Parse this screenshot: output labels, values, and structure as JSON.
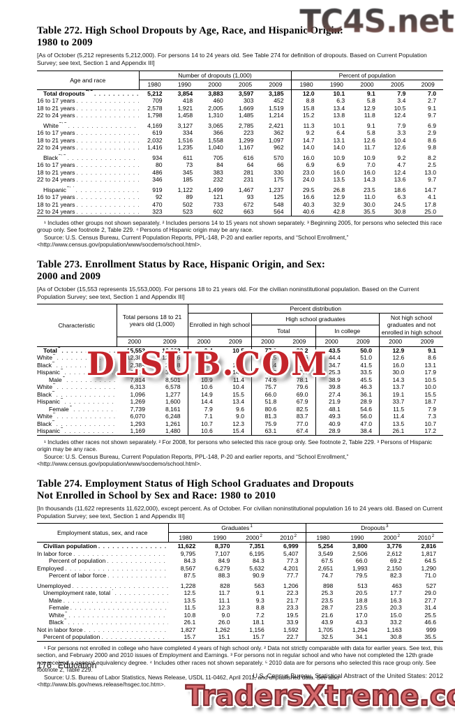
{
  "colors": {
    "watermark_red": "#c4252b",
    "watermark_salmon": "#d4686b",
    "watermark_dark_gradient_top": "#303032",
    "watermark_dark_gradient_bottom": "#8a4c46"
  },
  "watermarks": {
    "top": "TC4S.net",
    "middle": "DLSUB.COM",
    "bottom": "TradersXtreme.com"
  },
  "page_footer": {
    "page_number": "176",
    "section": "Education",
    "source_line": "U.S. Census Bureau, Statistical Abstract of the United States: 2012"
  },
  "table272": {
    "title_line1": "Table 272. High School Dropouts by Age, Race, and Hispanic Origin:",
    "title_line2": "1980 to 2009",
    "headnote": "[As of October (5,212 represents 5,212,000). For persons 14 to 24 years old. See Table 274 for definition of dropouts. Based on Current Population Survey; see text, Section 1 and Appendix III]",
    "stub_header": "Age and race",
    "groups": [
      "Number of dropouts (1,000)",
      "Percent of population"
    ],
    "years": [
      "1980",
      "1990",
      "2000",
      "2005",
      "2009"
    ],
    "rows": [
      {
        "label": "Total dropouts",
        "sup": "1, 2",
        "bold": true,
        "indent": 1,
        "values": [
          "5,212",
          "3,854",
          "3,883",
          "3,597",
          "3,185",
          "12.0",
          "10.1",
          "9.1",
          "7.9",
          "7.0"
        ]
      },
      {
        "label": "16 to 17 years",
        "values": [
          "709",
          "418",
          "460",
          "303",
          "452",
          "8.8",
          "6.3",
          "5.8",
          "3.4",
          "2.7"
        ]
      },
      {
        "label": "18 to 21 years",
        "values": [
          "2,578",
          "1,921",
          "2,005",
          "1,669",
          "1,519",
          "15.8",
          "13.4",
          "12.9",
          "10.5",
          "9.1"
        ]
      },
      {
        "label": "22 to 24 years",
        "values": [
          "1,798",
          "1,458",
          "1,310",
          "1,485",
          "1,214",
          "15.2",
          "13.8",
          "11.8",
          "12.4",
          "9.7"
        ]
      },
      {
        "label": "White",
        "sup": "2, 3",
        "indent": 1,
        "gap": true,
        "values": [
          "4,169",
          "3,127",
          "3,065",
          "2,785",
          "2,421",
          "11.3",
          "10.1",
          "9.1",
          "7.9",
          "6.9"
        ]
      },
      {
        "label": "16 to 17 years",
        "values": [
          "619",
          "334",
          "366",
          "223",
          "362",
          "9.2",
          "6.4",
          "5.8",
          "3.3",
          "2.9"
        ]
      },
      {
        "label": "18 to 21 years",
        "values": [
          "2,032",
          "1,516",
          "1,558",
          "1,299",
          "1,097",
          "14.7",
          "13.1",
          "12.6",
          "10.4",
          "8.6"
        ]
      },
      {
        "label": "22 to 24 years",
        "values": [
          "1,416",
          "1,235",
          "1,040",
          "1,167",
          "962",
          "14.0",
          "14.0",
          "11.7",
          "12.6",
          "9.8"
        ]
      },
      {
        "label": "Black",
        "sup": "2, 3",
        "indent": 1,
        "gap": true,
        "values": [
          "934",
          "611",
          "705",
          "616",
          "570",
          "16.0",
          "10.9",
          "10.9",
          "9.2",
          "8.2"
        ]
      },
      {
        "label": "16 to 17 years",
        "values": [
          "80",
          "73",
          "84",
          "64",
          "66",
          "6.9",
          "6.9",
          "7.0",
          "4.7",
          "2.5"
        ]
      },
      {
        "label": "18 to 21 years",
        "values": [
          "486",
          "345",
          "383",
          "281",
          "330",
          "23.0",
          "16.0",
          "16.0",
          "12.4",
          "13.0"
        ]
      },
      {
        "label": "22 to 24 years",
        "values": [
          "346",
          "185",
          "232",
          "231",
          "175",
          "24.0",
          "13.5",
          "14.3",
          "13.6",
          "9.7"
        ]
      },
      {
        "label": "Hispanic",
        "sup": "2, 4",
        "indent": 1,
        "gap": true,
        "values": [
          "919",
          "1,122",
          "1,499",
          "1,467",
          "1,237",
          "29.5",
          "26.8",
          "23.5",
          "18.6",
          "14.7"
        ]
      },
      {
        "label": "16 to 17 years",
        "values": [
          "92",
          "89",
          "121",
          "93",
          "125",
          "16.6",
          "12.9",
          "11.0",
          "6.3",
          "4.1"
        ]
      },
      {
        "label": "18 to 21 years",
        "values": [
          "470",
          "502",
          "733",
          "672",
          "548",
          "40.3",
          "32.9",
          "30.0",
          "24.5",
          "17.8"
        ]
      },
      {
        "label": "22 to 24 years",
        "values": [
          "323",
          "523",
          "602",
          "663",
          "564",
          "40.6",
          "42.8",
          "35.5",
          "30.8",
          "25.0"
        ]
      }
    ],
    "footnotes": "¹ Includes other groups not shown separately. ² Includes persons 14 to 15 years not shown separately. ³ Beginning 2005, for persons who selected this race group only. See footnote 2, Table 229. ⁴ Persons of Hispanic origin may be any race.",
    "source": "Source: U.S. Census Bureau, Current Population Reports, PPL-148, P-20 and earlier reports, and “School Enrollment,” <http://www.census.gov/population/www/socdemo/school.html>."
  },
  "table273": {
    "title_line1": "Table 273. Enrollment Status by Race, Hispanic Origin, and Sex:",
    "title_line2": "2000 and 2009",
    "headnote": "[As of October (15,553 represents 15,553,000). For persons 18 to 21 years old. For the civilian noninstitutional population. Based on the Current Population Survey; see text, Section 1 and Appendix III]",
    "stub_header": "Characteristic",
    "col_total_persons": "Total persons 18 to 21 years old (1,000)",
    "percent_distribution": "Percent distribution",
    "enrolled": "Enrolled in high school",
    "hs_grads": "High school graduates",
    "hsg_total": "Total",
    "in_college": "In college",
    "not_hs": "Not high school graduates and not enrolled in high school",
    "years": [
      "2000",
      "2009"
    ],
    "rows": [
      {
        "label": "Total",
        "sup": "1",
        "bold": true,
        "indent": 1,
        "values": [
          "15,553",
          "16,662",
          "9.4",
          "10.5",
          "77.6",
          "80.2",
          "43.5",
          "50.0",
          "12.9",
          "9.1"
        ]
      },
      {
        "label": "White",
        "sup": "2",
        "values": [
          "12,383",
          "12,826",
          "8.9",
          "9.7",
          "78.5",
          "81.6",
          "44.4",
          "51.0",
          "12.6",
          "8.6"
        ]
      },
      {
        "label": "Black",
        "sup": "2",
        "values": [
          "2,389",
          "2,538",
          "12.6",
          "13.9",
          "71.4",
          "73.0",
          "34.7",
          "41.5",
          "16.0",
          "13.1"
        ]
      },
      {
        "label": "Hispanic",
        "sup": "3",
        "values": [
          "2,438",
          "3,080",
          "12.6",
          "14.4",
          "57.2",
          "67.7",
          "25.3",
          "33.5",
          "30.0",
          "17.9"
        ]
      },
      {
        "label": "Male",
        "sup": "1",
        "indent": 2,
        "values": [
          "7,814",
          "8,501",
          "10.9",
          "11.4",
          "74.6",
          "78.1",
          "38.9",
          "45.5",
          "14.3",
          "10.5"
        ]
      },
      {
        "label": "White",
        "sup": "2",
        "values": [
          "6,313",
          "6,578",
          "10.6",
          "10.4",
          "75.7",
          "79.6",
          "39.8",
          "46.3",
          "13.7",
          "10.0"
        ]
      },
      {
        "label": "Black",
        "sup": "2",
        "values": [
          "1,096",
          "1,277",
          "14.9",
          "15.5",
          "66.0",
          "69.0",
          "27.4",
          "36.1",
          "19.1",
          "15.5"
        ]
      },
      {
        "label": "Hispanic",
        "sup": "3",
        "values": [
          "1,269",
          "1,600",
          "14.4",
          "13.4",
          "51.8",
          "67.9",
          "21.9",
          "28.9",
          "33.7",
          "18.7"
        ]
      },
      {
        "label": "Female",
        "sup": "1",
        "indent": 2,
        "values": [
          "7,739",
          "8,161",
          "7.9",
          "9.6",
          "80.6",
          "82.5",
          "48.1",
          "54.6",
          "11.5",
          "7.9"
        ]
      },
      {
        "label": "White",
        "sup": "2",
        "values": [
          "6,070",
          "6,248",
          "7.1",
          "9.0",
          "81.3",
          "83.7",
          "49.3",
          "56.0",
          "11.4",
          "7.3"
        ]
      },
      {
        "label": "Black",
        "sup": "2",
        "values": [
          "1,293",
          "1,261",
          "10.7",
          "12.3",
          "75.9",
          "77.0",
          "40.9",
          "47.0",
          "13.5",
          "10.7"
        ]
      },
      {
        "label": "Hispanic",
        "sup": "3",
        "values": [
          "1,169",
          "1,480",
          "10.6",
          "15.4",
          "63.1",
          "67.4",
          "28.9",
          "38.4",
          "26.1",
          "17.2"
        ]
      }
    ],
    "footnotes": "¹ Includes other races not shown separately. ² For 2008, for persons who selected this race group only. See footnote 2, Table 229. ³ Persons of Hispanic origin may be any race.",
    "source": "Source: U.S. Census Bureau, Current Population Reports, PPL-148, P-20 and earlier reports, and “School Enrollment,” <http://www.census.gov/population/www/socdemo/school.html>."
  },
  "table274": {
    "title_line1": "Table 274. Employment Status of High School Graduates and Dropouts",
    "title_line2": "Not Enrolled in School by Sex and Race: 1980 to 2010",
    "headnote": "[In thousands (11,622 represents 11,622,000), except percent. As of October. For civilian noninstitutional population 16 to 24 years old. Based on Current Population Survey; see text, Section 1 and Appendix III]",
    "stub_header": "Employment status, sex, and race",
    "groups": [
      {
        "label": "Graduates",
        "sup": "1"
      },
      {
        "label": "Dropouts",
        "sup": "3"
      }
    ],
    "years": [
      {
        "label": "1980",
        "sup": ""
      },
      {
        "label": "1990",
        "sup": ""
      },
      {
        "label": "2000",
        "sup": "2"
      },
      {
        "label": "2010",
        "sup": "2"
      }
    ],
    "rows": [
      {
        "label": "Civilian population",
        "bold": true,
        "indent": 1,
        "values": [
          "11,622",
          "8,370",
          "7,351",
          "6,999",
          "5,254",
          "3,800",
          "3,776",
          "2,816"
        ]
      },
      {
        "label": "In labor force",
        "values": [
          "9,795",
          "7,107",
          "6,195",
          "5,407",
          "3,549",
          "2,506",
          "2,612",
          "1,817"
        ]
      },
      {
        "label": "Percent of population",
        "indent": 2,
        "values": [
          "84.3",
          "84.9",
          "84.3",
          "77.3",
          "67.5",
          "66.0",
          "69.2",
          "64.5"
        ]
      },
      {
        "label": "Employed",
        "values": [
          "8,567",
          "6,279",
          "5,632",
          "4,201",
          "2,651",
          "1,993",
          "2,150",
          "1,290"
        ]
      },
      {
        "label": "Percent of labor force",
        "indent": 2,
        "values": [
          "87.5",
          "88.3",
          "90.9",
          "77.7",
          "74.7",
          "79.5",
          "82.3",
          "71.0"
        ]
      },
      {
        "label": "Unemployed",
        "gap": true,
        "values": [
          "1,228",
          "828",
          "563",
          "1,206",
          "898",
          "513",
          "463",
          "527"
        ]
      },
      {
        "label": "Unemployment rate, total",
        "sup": "4",
        "indent": 1,
        "values": [
          "12.5",
          "11.7",
          "9.1",
          "22.3",
          "25.3",
          "20.5",
          "17.7",
          "29.0"
        ]
      },
      {
        "label": "Male",
        "indent": 2,
        "values": [
          "13.5",
          "11.1",
          "9.3",
          "21.7",
          "23.5",
          "18.8",
          "16.3",
          "27.7"
        ]
      },
      {
        "label": "Female",
        "indent": 2,
        "values": [
          "11.5",
          "12.3",
          "8.8",
          "23.3",
          "28.7",
          "23.5",
          "20.3",
          "31.4"
        ]
      },
      {
        "label": "White",
        "sup": "5",
        "indent": 2,
        "values": [
          "10.8",
          "9.0",
          "7.2",
          "19.5",
          "21.6",
          "17.0",
          "15.0",
          "25.5"
        ]
      },
      {
        "label": "Black",
        "sup": "5",
        "indent": 2,
        "values": [
          "26.1",
          "26.0",
          "18.1",
          "33.9",
          "43.9",
          "43.3",
          "33.2",
          "46.6"
        ]
      },
      {
        "label": "Not in labor force",
        "values": [
          "1,827",
          "1,262",
          "1,156",
          "1,592",
          "1,705",
          "1,294",
          "1,163",
          "999"
        ]
      },
      {
        "label": "Percent of population",
        "indent": 1,
        "values": [
          "15.7",
          "15.1",
          "15.7",
          "22.7",
          "32.5",
          "34.1",
          "30.8",
          "35.5"
        ]
      }
    ],
    "footnotes": "¹ For persons not enrolled in college who have completed 4 years of high school only. ² Data not strictly comparable with data for earlier years. See text, this section, and February 2000 and 2010 issues of Employment and Earnings. ³ For persons not in regular school and who have not completed the 12th grade nor received a general equivalency degree. ⁴ Includes other races not shown separately. ⁵ 2010 data are for persons who selected this race group only. See footnote 2, Table 229.",
    "source": "Source: U.S. Bureau of Labor Statistics, News Release, USDL 11-0462, April 2011, and unpublished data. See also <http://www.bls.gov/news.release/hsgec.toc.htm>."
  }
}
